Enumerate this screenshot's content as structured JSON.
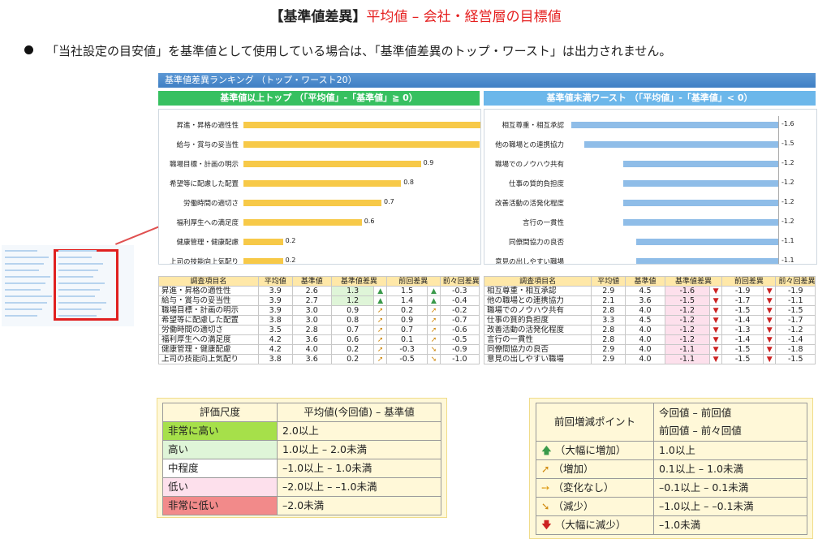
{
  "title": {
    "bracket": "【基準値差異】",
    "main": "平均値 – 会社・経営層の目標値"
  },
  "bullet": "「当社設定の目安値」を基準値として使用している場合は、「基準値差異のトップ・ワースト」は出力されません。",
  "ranking": {
    "header": "基準値差異ランキング （トップ・ワースト20）",
    "top_label": "基準値以上トップ （「平均値」-「基準値」≧ 0）",
    "worst_label": "基準値未満ワースト （「平均値」-「基準値」< 0）",
    "top": [
      {
        "label": "昇進・昇格の適性性",
        "value": 1.3
      },
      {
        "label": "給与・賞与の妥当性",
        "value": 1.2
      },
      {
        "label": "職場目標・計画の明示",
        "value": 0.9
      },
      {
        "label": "希望等に配慮した配置",
        "value": 0.8
      },
      {
        "label": "労働時間の適切さ",
        "value": 0.7
      },
      {
        "label": "福利厚生への満足度",
        "value": 0.6
      },
      {
        "label": "健康管理・健康配慮",
        "value": 0.2
      },
      {
        "label": "上司の技能向上気配り",
        "value": 0.2
      }
    ],
    "worst": [
      {
        "label": "相互尊重・相互承認",
        "value": -1.6
      },
      {
        "label": "他の職場との連携協力",
        "value": -1.5
      },
      {
        "label": "職場でのノウハウ共有",
        "value": -1.2
      },
      {
        "label": "仕事の質的負担度",
        "value": -1.2
      },
      {
        "label": "改善活動の活発化程度",
        "value": -1.2
      },
      {
        "label": "言行の一貫性",
        "value": -1.2
      },
      {
        "label": "同僚間協力の良否",
        "value": -1.1
      },
      {
        "label": "意見の出しやすい職場",
        "value": -1.1
      }
    ]
  },
  "table": {
    "headers": [
      "調査項目名",
      "平均値",
      "基準値",
      "基準値差異",
      "前回差異",
      "前々回差異"
    ],
    "top_rows": [
      [
        "昇進・昇格の適性性",
        "3.9",
        "2.6",
        "1.3",
        "1.5",
        "-0.3"
      ],
      [
        "給与・賞与の妥当性",
        "3.9",
        "2.7",
        "1.2",
        "1.4",
        "-0.4"
      ],
      [
        "職場目標・計画の明示",
        "3.9",
        "3.0",
        "0.9",
        "0.2",
        "-0.2"
      ],
      [
        "希望等に配慮した配置",
        "3.8",
        "3.0",
        "0.8",
        "0.9",
        "-0.7"
      ],
      [
        "労働時間の適切さ",
        "3.5",
        "2.8",
        "0.7",
        "0.7",
        "-0.6"
      ],
      [
        "福利厚生への満足度",
        "4.2",
        "3.6",
        "0.6",
        "0.1",
        "-0.5"
      ],
      [
        "健康管理・健康配慮",
        "4.2",
        "4.0",
        "0.2",
        "-0.3",
        "-0.9"
      ],
      [
        "上司の技能向上気配り",
        "3.8",
        "3.6",
        "0.2",
        "-0.5",
        "-1.0"
      ]
    ],
    "worst_rows": [
      [
        "相互尊重・相互承認",
        "2.9",
        "4.5",
        "-1.6",
        "-1.9",
        "-1.9"
      ],
      [
        "他の職場との連携協力",
        "2.1",
        "3.6",
        "-1.5",
        "-1.7",
        "-1.1"
      ],
      [
        "職場でのノウハウ共有",
        "2.8",
        "4.0",
        "-1.2",
        "-1.5",
        "-1.5"
      ],
      [
        "仕事の質的負担度",
        "3.3",
        "4.5",
        "-1.2",
        "-1.4",
        "-1.7"
      ],
      [
        "改善活動の活発化程度",
        "2.8",
        "4.0",
        "-1.2",
        "-1.3",
        "-1.2"
      ],
      [
        "言行の一貫性",
        "2.8",
        "4.0",
        "-1.2",
        "-1.4",
        "-1.4"
      ],
      [
        "同僚間協力の良否",
        "2.9",
        "4.0",
        "-1.1",
        "-1.5",
        "-1.8"
      ],
      [
        "意見の出しやすい職場",
        "2.9",
        "4.0",
        "-1.1",
        "-1.5",
        "-1.5"
      ]
    ]
  },
  "scale_legend": {
    "headers": [
      "評価尺度",
      "平均値(今回値) – 基準値"
    ],
    "rows": [
      {
        "label": "非常に高い",
        "range": "2.0以上",
        "color": "#a6e04a"
      },
      {
        "label": "高い",
        "range": "1.0以上 – 2.0未満",
        "color": "#dff5d8"
      },
      {
        "label": "中程度",
        "range": "–1.0以上 – 1.0未満",
        "color": "#ffffff"
      },
      {
        "label": "低い",
        "range": "–2.0以上 – –1.0未満",
        "color": "#fde0ec"
      },
      {
        "label": "非常に低い",
        "range": "–2.0未満",
        "color": "#f28a8a"
      }
    ]
  },
  "change_legend": {
    "header_left": "前回増減ポイント",
    "header_right_1": "今回値 – 前回値",
    "header_right_2": "前回値 – 前々回値",
    "rows": [
      {
        "label": "（大幅に増加）",
        "range": "1.0以上",
        "icon": "up-arrow"
      },
      {
        "label": "（増加）",
        "range": "0.1以上 – 1.0未満",
        "icon": "up-right-arrow"
      },
      {
        "label": "（変化なし）",
        "range": "–0.1以上 – 0.1未満",
        "icon": "right-arrow"
      },
      {
        "label": "（減少）",
        "range": "–1.0以上 – –0.1未満",
        "icon": "down-right-arrow"
      },
      {
        "label": "（大幅に減少）",
        "range": "–1.0未満",
        "icon": "down-arrow"
      }
    ]
  }
}
